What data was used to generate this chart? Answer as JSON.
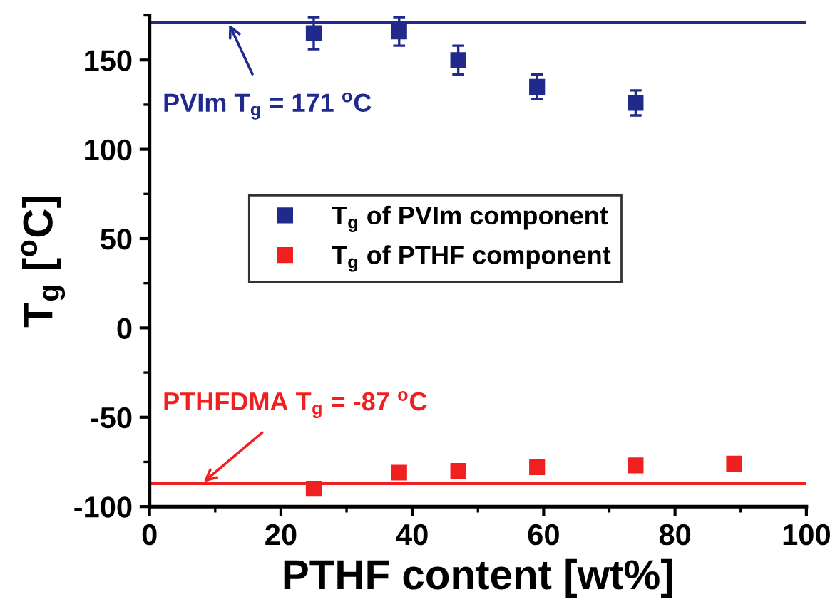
{
  "chart_data": {
    "type": "scatter",
    "xlabel": "PTHF content [wt%]",
    "ylabel": "T$_{g}$ [$^{o}$C]",
    "xlim": [
      0,
      100
    ],
    "ylim": [
      -100,
      175
    ],
    "xticks": [
      0,
      20,
      40,
      60,
      80,
      100
    ],
    "yticks": [
      -100,
      -50,
      0,
      50,
      100,
      150
    ],
    "grid": false,
    "legend": "center",
    "marker": "square",
    "series": [
      {
        "name": "T$_{g}$ of PVIm component",
        "color": "#1f2a8c",
        "x": [
          25,
          38,
          47,
          59,
          74
        ],
        "values": [
          165,
          166,
          150,
          135,
          126
        ],
        "errors": [
          9,
          8,
          8,
          7,
          7
        ]
      },
      {
        "name": "T$_{g}$ of PTHF component",
        "color": "#f02020",
        "x": [
          25,
          38,
          47,
          59,
          74,
          89
        ],
        "values": [
          -90,
          -81,
          -80,
          -78,
          -77,
          -76
        ]
      }
    ],
    "ref_lines": [
      {
        "axis": "y",
        "value": 171,
        "label": "PVIm T$_{g}$ = 171 $^{o}$C",
        "color": "#1f2a8c"
      },
      {
        "axis": "y",
        "value": -87,
        "label": "PTHFDMA T$_{g}$ = -87 $^{o}$C",
        "color": "#f02020"
      }
    ]
  }
}
